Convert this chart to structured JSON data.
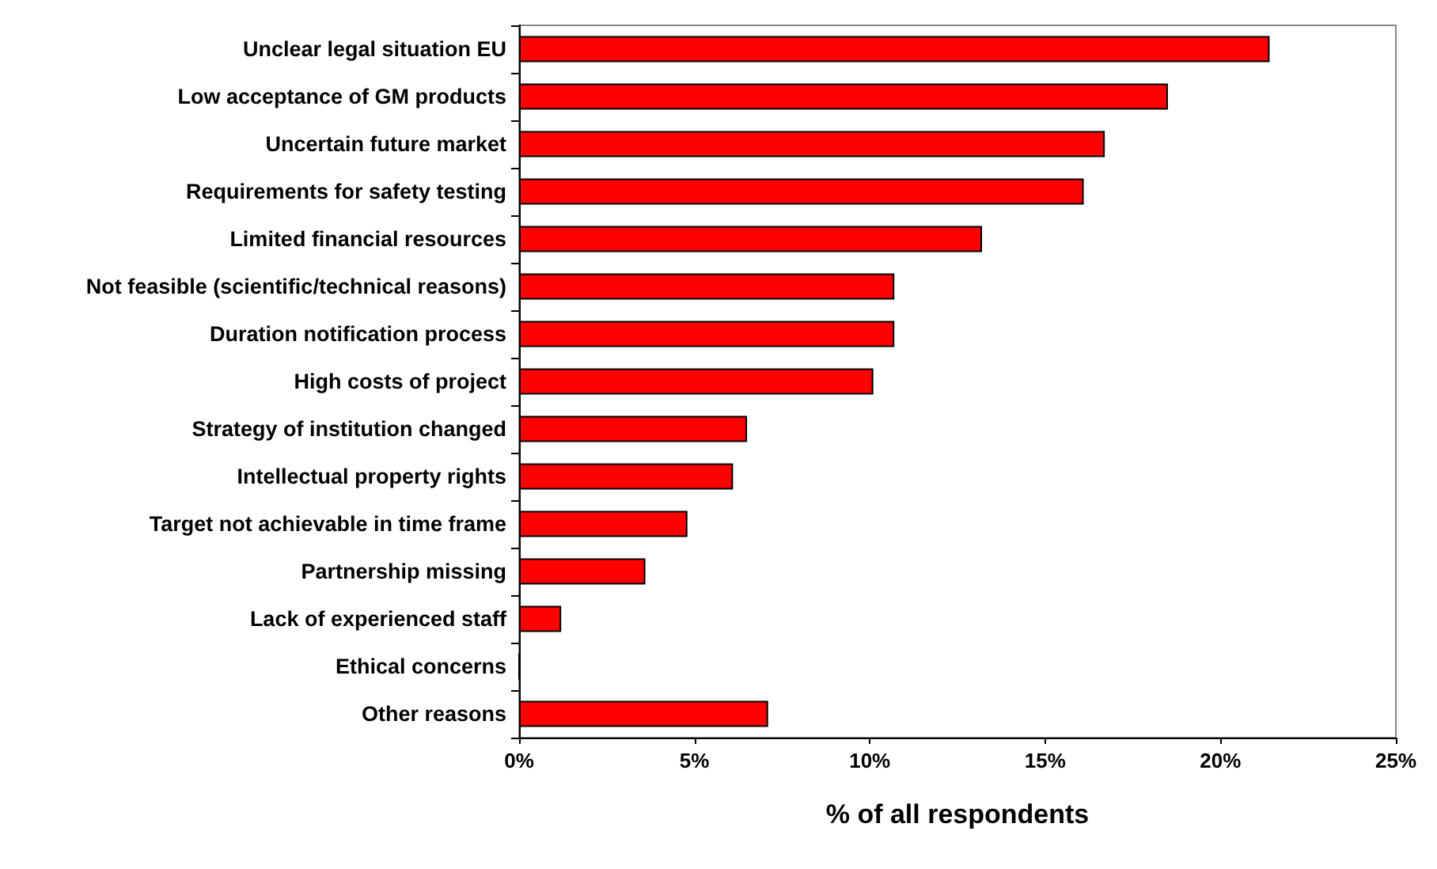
{
  "chart_data": {
    "type": "bar",
    "orientation": "horizontal",
    "xlabel": "% of all respondents",
    "categories": [
      "Unclear legal situation EU",
      "Low acceptance of GM products",
      "Uncertain future market",
      "Requirements for safety testing",
      "Limited financial resources",
      "Not feasible (scientific/technical reasons)",
      "Duration notification process",
      "High costs of project",
      "Strategy of institution changed",
      "Intellectual property rights",
      "Target not achievable in time frame",
      "Partnership missing",
      "Lack of experienced staff",
      "Ethical concerns",
      "Other reasons"
    ],
    "values": [
      21.4,
      18.5,
      16.7,
      16.1,
      13.2,
      10.7,
      10.7,
      10.1,
      6.5,
      6.1,
      4.8,
      3.6,
      1.2,
      0,
      7.1
    ],
    "color": "#ff0000",
    "xlim": [
      0,
      25
    ],
    "xticks": [
      {
        "value": 0,
        "label": "0%"
      },
      {
        "value": 5,
        "label": "5%"
      },
      {
        "value": 10,
        "label": "10%"
      },
      {
        "value": 15,
        "label": "15%"
      },
      {
        "value": 20,
        "label": "20%"
      },
      {
        "value": 25,
        "label": "25%"
      }
    ],
    "grid": false
  }
}
